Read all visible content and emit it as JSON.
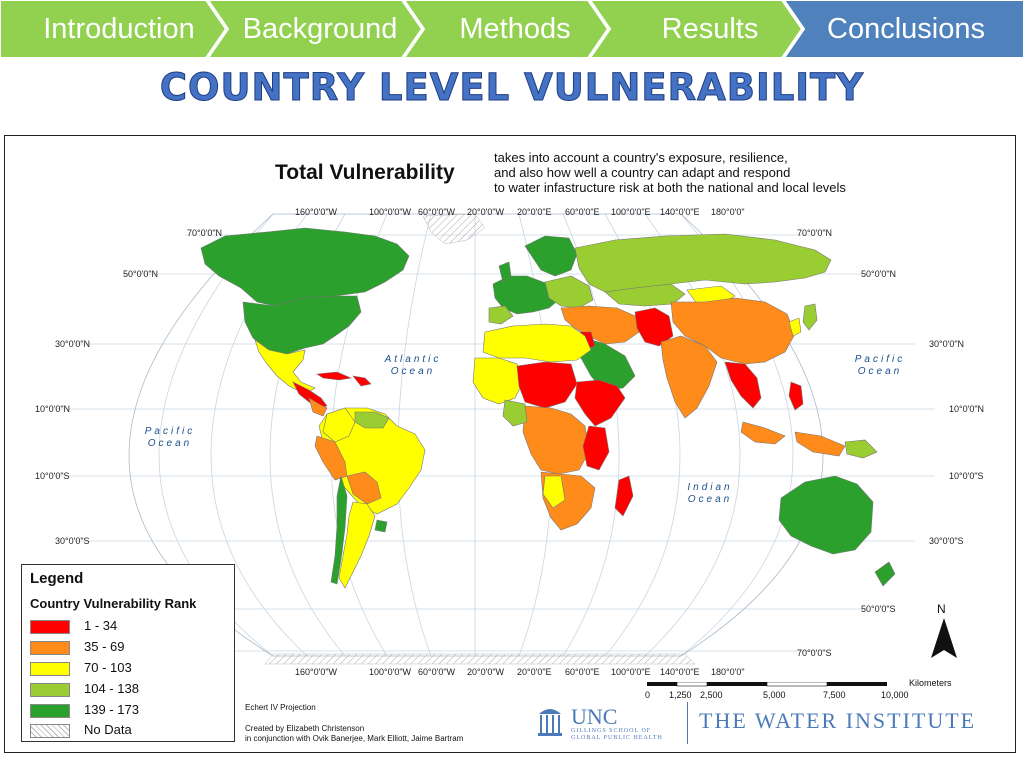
{
  "nav": {
    "tabs": [
      {
        "label": "Introduction",
        "color": "#92d050"
      },
      {
        "label": "Background",
        "color": "#92d050"
      },
      {
        "label": "Methods",
        "color": "#92d050"
      },
      {
        "label": "Results",
        "color": "#92d050"
      },
      {
        "label": "Conclusions",
        "color": "#4f81bd"
      }
    ]
  },
  "page_title": "COUNTRY LEVEL VULNERABILITY",
  "map": {
    "heading": "Total Vulnerability",
    "description": "takes into account a country's exposure, resilience, and also how well a country can adapt and respond to water infastructure risk at both the national and local levels",
    "description_lines": [
      "takes into account a country's exposure, resilience,",
      "and also how well a country can adapt and respond",
      "to water infastructure risk at both the national and local levels"
    ],
    "longitude_labels": [
      "160°0'0\"W",
      "100°0'0\"W",
      "60°0'0\"W",
      "20°0'0\"W",
      "20°0'0\"E",
      "60°0'0\"E",
      "100°0'0\"E",
      "140°0'0\"E",
      "180°0'0\""
    ],
    "latitude_labels": {
      "n70": "70°0'0\"N",
      "n50": "50°0'0\"N",
      "n30": "30°0'0\"N",
      "n10": "10°0'0\"N",
      "s10": "10°0'0\"S",
      "s30": "30°0'0\"S",
      "s50": "50°0'0\"S",
      "s70": "70°0'0\"S"
    },
    "oceans": {
      "atlantic": "Atlantic Ocean",
      "pacific_west": "Pacific Ocean",
      "pacific_east": "Pacific Ocean",
      "indian": "Indian Ocean"
    }
  },
  "legend": {
    "title": "Legend",
    "subtitle": "Country Vulnerability Rank",
    "items": [
      {
        "label": "1 - 34",
        "color": "#ff0000"
      },
      {
        "label": "35 - 69",
        "color": "#ff8c1a"
      },
      {
        "label": "70 - 103",
        "color": "#ffff00"
      },
      {
        "label": "104 - 138",
        "color": "#9acd32"
      },
      {
        "label": "139 - 173",
        "color": "#2ca02c"
      },
      {
        "label": "No Data",
        "color": "#e0e0e0"
      }
    ]
  },
  "credits": {
    "projection": "Echert IV Projection",
    "created_by": "Created by Elizabeth Christenson",
    "collaborators": "in conjunction with Ovik Banerjee, Mark Elliott, Jaime Bartram"
  },
  "north_arrow": "N",
  "scale": {
    "unit": "Kilometers",
    "ticks": [
      "0",
      "1,250",
      "2,500",
      "5,000",
      "7,500",
      "10,000"
    ]
  },
  "logos": {
    "unc": "UNC",
    "unc_sub_1": "GILLINGS SCHOOL OF",
    "unc_sub_2": "GLOBAL PUBLIC HEALTH",
    "water_institute": "THE WATER INSTITUTE"
  },
  "colors": {
    "accent_blue": "#4472c4",
    "nav_green": "#92d050",
    "nav_blue": "#4f81bd"
  }
}
